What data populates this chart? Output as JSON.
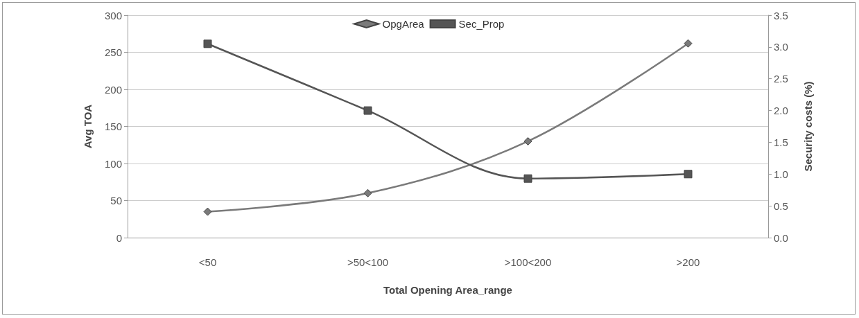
{
  "chart_data": {
    "type": "line",
    "xlabel": "Total Opening Area_range",
    "ylabel": "Avg TOA",
    "y2label": "Security costs (%)",
    "categories": [
      "<50",
      ">50<100",
      ">100<200",
      ">200"
    ],
    "series": [
      {
        "name": "OpgArea",
        "color": "#7a7a7a",
        "values": [
          35,
          60,
          130,
          262
        ],
        "marker": "diamond"
      },
      {
        "name": "Sec_Prop",
        "color": "#555555",
        "values": [
          3.05,
          2.0,
          0.93,
          1.0
        ],
        "marker": "square",
        "axis": "y2"
      }
    ],
    "ylim": [
      0,
      300
    ],
    "yticks": [
      0,
      50,
      100,
      150,
      200,
      250,
      300
    ],
    "y2lim": [
      0,
      3.5
    ],
    "y2ticks": [
      {
        "value": 0,
        "label": "0.0"
      },
      {
        "value": 0.5,
        "label": "0.5"
      },
      {
        "value": 1,
        "label": "1.0"
      },
      {
        "value": 1.5,
        "label": "1.5"
      },
      {
        "value": 2,
        "label": "2.0"
      },
      {
        "value": 2.5,
        "label": "2.5"
      },
      {
        "value": 3,
        "label": "3.0"
      },
      {
        "value": 3.5,
        "label": "3.5"
      }
    ],
    "grid": "y",
    "legend": "top",
    "line_style": "solid"
  }
}
